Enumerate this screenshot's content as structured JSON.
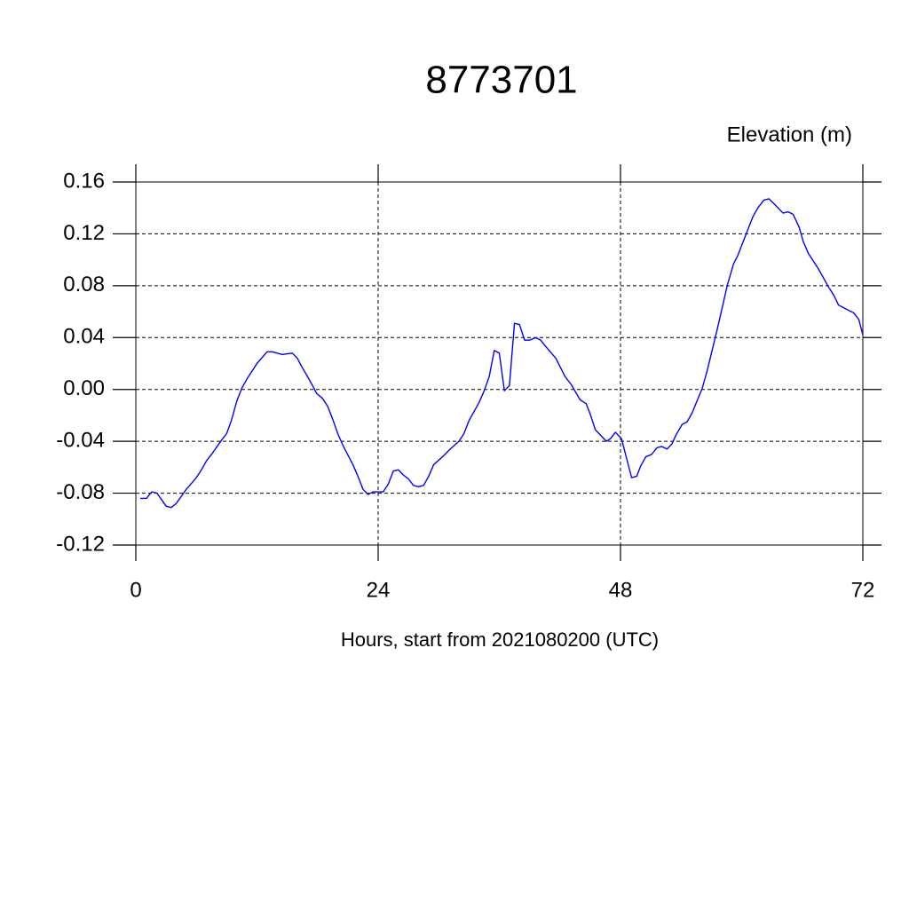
{
  "chart_data": {
    "type": "line",
    "title": "8773701",
    "ylabel": "Elevation (m)",
    "xlabel": "Hours, start from 2021080200 (UTC)",
    "xlim": [
      0,
      72
    ],
    "xticks": [
      0,
      24,
      48,
      72
    ],
    "ylim": [
      -0.12,
      0.16
    ],
    "yticks": [
      -0.12,
      -0.08,
      -0.04,
      {
        "value": 0,
        "label": "0.00"
      },
      0.04,
      0.08,
      0.12,
      0.16
    ],
    "grid": true,
    "x": [
      0.44,
      1.05,
      1.58,
      2.1,
      3.0,
      3.5,
      4.0,
      5.0,
      6.0,
      6.5,
      7.0,
      7.6,
      8.5,
      9.0,
      9.5,
      10.0,
      10.5,
      11.0,
      11.5,
      12.0,
      13.0,
      13.5,
      14.5,
      15.5,
      16.0,
      16.4,
      17.0,
      17.5,
      17.9,
      18.5,
      19.0,
      19.5,
      20.0,
      20.5,
      21.5,
      22.0,
      22.5,
      23.0,
      23.5,
      24.0,
      24.5,
      25.0,
      25.5,
      26.0,
      26.5,
      27.0,
      27.5,
      28.0,
      28.5,
      29.0,
      29.5,
      30.5,
      31.0,
      32.0,
      32.5,
      33.0,
      33.5,
      34.0,
      34.5,
      35.0,
      35.5,
      36.0,
      36.5,
      37.0,
      37.5,
      38.0,
      38.5,
      39.0,
      39.6,
      40.1,
      40.5,
      41.6,
      42.5,
      43.1,
      44.0,
      44.6,
      45.0,
      45.5,
      46.6,
      47.0,
      47.5,
      48.1,
      48.5,
      49.1,
      49.6,
      50.0,
      50.5,
      51.1,
      51.6,
      52.1,
      52.6,
      53.1,
      53.5,
      54.1,
      54.6,
      55.1,
      56.1,
      56.6,
      57.6,
      58.6,
      59.2,
      59.6,
      60.7,
      61.1,
      61.6,
      62.2,
      62.7,
      63.1,
      63.6,
      64.1,
      64.6,
      65.1,
      65.7,
      66.1,
      66.6,
      67.6,
      68.1,
      68.6,
      69.1,
      69.6,
      70.6,
      71.1,
      71.6,
      72
    ],
    "series": [
      {
        "color": "#0000ff",
        "values": [
          -0.084,
          -0.084,
          -0.079,
          -0.08,
          -0.09,
          -0.091,
          -0.088,
          -0.077,
          -0.068,
          -0.062,
          -0.055,
          -0.049,
          -0.039,
          -0.034,
          -0.023,
          -0.009,
          0.001,
          0.008,
          0.014,
          0.02,
          0.029,
          0.029,
          0.027,
          0.028,
          0.024,
          0.018,
          0.01,
          0.003,
          -0.003,
          -0.007,
          -0.013,
          -0.023,
          -0.034,
          -0.043,
          -0.058,
          -0.067,
          -0.077,
          -0.081,
          -0.079,
          -0.079,
          -0.079,
          -0.073,
          -0.063,
          -0.062,
          -0.066,
          -0.069,
          -0.074,
          -0.075,
          -0.074,
          -0.067,
          -0.058,
          -0.051,
          -0.047,
          -0.04,
          -0.034,
          -0.024,
          -0.017,
          -0.01,
          -0.001,
          0.01,
          0.03,
          0.028,
          -0.001,
          0.003,
          0.051,
          0.05,
          0.038,
          0.038,
          0.04,
          0.038,
          0.034,
          0.024,
          0.01,
          0.004,
          -0.008,
          -0.011,
          -0.019,
          -0.031,
          -0.04,
          -0.038,
          -0.033,
          -0.038,
          -0.05,
          -0.068,
          -0.067,
          -0.059,
          -0.052,
          -0.05,
          -0.045,
          -0.044,
          -0.046,
          -0.042,
          -0.035,
          -0.027,
          -0.025,
          -0.018,
          0.001,
          0.015,
          0.047,
          0.081,
          0.097,
          0.103,
          0.125,
          0.133,
          0.14,
          0.146,
          0.147,
          0.144,
          0.14,
          0.136,
          0.137,
          0.135,
          0.125,
          0.114,
          0.105,
          0.093,
          0.086,
          0.079,
          0.073,
          0.065,
          0.061,
          0.059,
          0.054,
          0.042
        ]
      }
    ]
  }
}
